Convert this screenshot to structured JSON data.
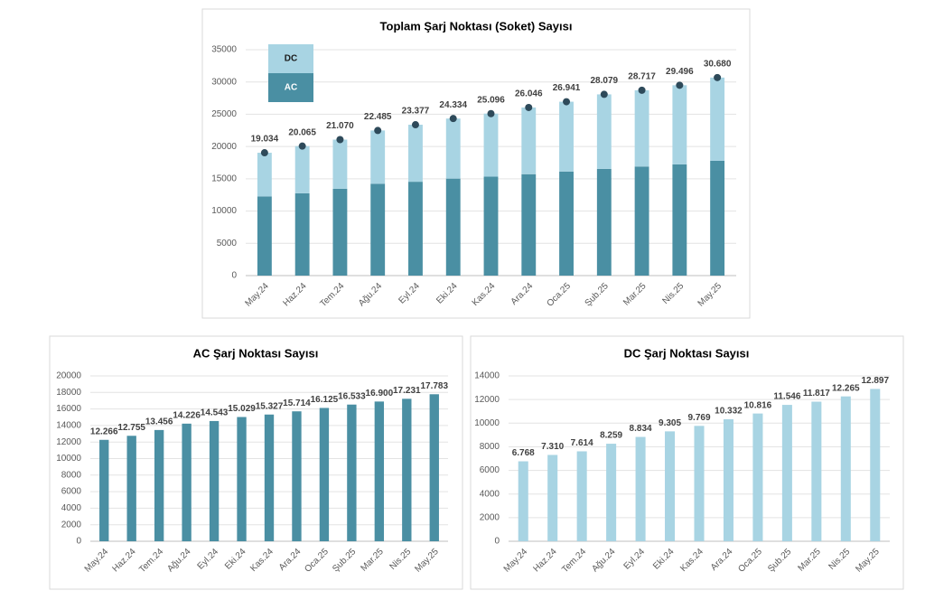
{
  "chart_data": [
    {
      "type": "stacked_bar",
      "title": "Toplam Şarj Noktası (Soket) Sayısı",
      "categories": [
        "May.24",
        "Haz.24",
        "Tem.24",
        "Ağu.24",
        "Eyl.24",
        "Eki.24",
        "Kas.24",
        "Ara.24",
        "Oca.25",
        "Şub.25",
        "Mar.25",
        "Nis.25",
        "May.25"
      ],
      "series": [
        {
          "name": "AC",
          "color": "#4a8fa3",
          "values": [
            12266,
            12755,
            13456,
            14226,
            14543,
            15029,
            15327,
            15714,
            16125,
            16533,
            16900,
            17231,
            17783
          ]
        },
        {
          "name": "DC",
          "color": "#a8d4e3",
          "values": [
            6768,
            7310,
            7614,
            8259,
            8834,
            9305,
            9769,
            10332,
            10816,
            11546,
            11817,
            12265,
            12897
          ]
        }
      ],
      "totals": {
        "color": "#2e4a5a",
        "values": [
          19034,
          20065,
          21070,
          22485,
          23377,
          24334,
          25096,
          26046,
          26941,
          28079,
          28717,
          29496,
          30680
        ],
        "value_labels": [
          "19.034",
          "20.065",
          "21.070",
          "22.485",
          "23.377",
          "24.334",
          "25.096",
          "26.046",
          "26.941",
          "28.079",
          "28.717",
          "29.496",
          "30.680"
        ]
      },
      "ylim": [
        0,
        35000
      ],
      "yticks": [
        0,
        5000,
        10000,
        15000,
        20000,
        25000,
        30000,
        35000
      ],
      "grid": true,
      "legend": "top-left"
    },
    {
      "type": "bar",
      "title": "AC Şarj Noktası Sayısı",
      "categories": [
        "May.24",
        "Haz.24",
        "Tem.24",
        "Ağu.24",
        "Eyl.24",
        "Eki.24",
        "Kas.24",
        "Ara.24",
        "Oca.25",
        "Şub.25",
        "Mar.25",
        "Nis.25",
        "May.25"
      ],
      "values": [
        12266,
        12755,
        13456,
        14226,
        14543,
        15029,
        15327,
        15714,
        16125,
        16533,
        16900,
        17231,
        17783
      ],
      "value_labels": [
        "12.266",
        "12.755",
        "13.456",
        "14.226",
        "14.543",
        "15.029",
        "15.327",
        "15.714",
        "16.125",
        "16.533",
        "16.900",
        "17.231",
        "17.783"
      ],
      "color": "#4a8fa3",
      "ylim": [
        0,
        20000
      ],
      "yticks": [
        0,
        2000,
        4000,
        6000,
        8000,
        10000,
        12000,
        14000,
        16000,
        18000,
        20000
      ],
      "grid": true
    },
    {
      "type": "bar",
      "title": "DC Şarj Noktası Sayısı",
      "categories": [
        "May.24",
        "Haz.24",
        "Tem.24",
        "Ağu.24",
        "Eyl.24",
        "Eki.24",
        "Kas.24",
        "Ara.24",
        "Oca.25",
        "Şub.25",
        "Mar.25",
        "Nis.25",
        "May.25"
      ],
      "values": [
        6768,
        7310,
        7614,
        8259,
        8834,
        9305,
        9769,
        10332,
        10816,
        11546,
        11817,
        12265,
        12897
      ],
      "value_labels": [
        "6.768",
        "7.310",
        "7.614",
        "8.259",
        "8.834",
        "9.305",
        "9.769",
        "10.332",
        "10.816",
        "11.546",
        "11.817",
        "12.265",
        "12.897"
      ],
      "color": "#a8d4e3",
      "ylim": [
        0,
        14000
      ],
      "yticks": [
        0,
        2000,
        4000,
        6000,
        8000,
        10000,
        12000,
        14000
      ],
      "grid": true
    }
  ]
}
